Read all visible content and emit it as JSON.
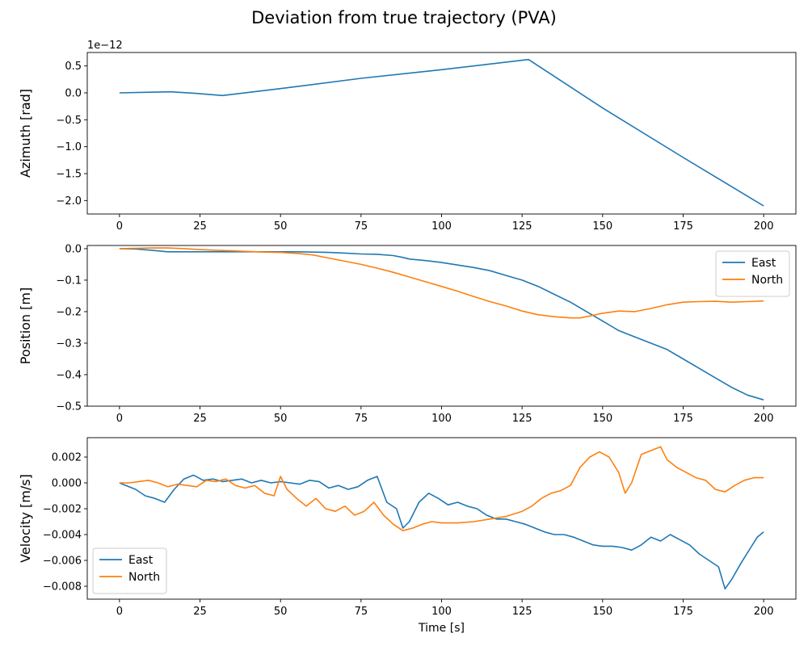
{
  "figure": {
    "title": "Deviation from true trajectory (PVA)"
  },
  "chart_data": [
    {
      "type": "line",
      "ylabel": "Azimuth [rad]",
      "xlabel": "",
      "offset_label": "1e−12",
      "xlim": [
        -10,
        210
      ],
      "ylim": [
        -2.25,
        0.75
      ],
      "xticks": [
        0,
        25,
        50,
        75,
        100,
        125,
        150,
        175,
        200
      ],
      "xtick_labels": [
        "0",
        "25",
        "50",
        "75",
        "100",
        "125",
        "150",
        "175",
        "200"
      ],
      "yticks": [
        -2.0,
        -1.5,
        -1.0,
        -0.5,
        0.0,
        0.5
      ],
      "ytick_labels": [
        "−2.0",
        "−1.5",
        "−1.0",
        "−0.5",
        "0.0",
        "0.5"
      ],
      "legend": null,
      "series": [
        {
          "color": "#1f77b4",
          "x": [
            0,
            8,
            16,
            24,
            32,
            50,
            75,
            100,
            127,
            150,
            175,
            200
          ],
          "y": [
            0.0,
            0.01,
            0.02,
            -0.01,
            -0.05,
            0.08,
            0.27,
            0.43,
            0.62,
            -0.28,
            -1.2,
            -2.1
          ]
        }
      ]
    },
    {
      "type": "line",
      "ylabel": "Position [m]",
      "xlabel": "",
      "xlim": [
        -10,
        210
      ],
      "ylim": [
        -0.5,
        0.01
      ],
      "xticks": [
        0,
        25,
        50,
        75,
        100,
        125,
        150,
        175,
        200
      ],
      "xtick_labels": [
        "0",
        "25",
        "50",
        "75",
        "100",
        "125",
        "150",
        "175",
        "200"
      ],
      "yticks": [
        -0.5,
        -0.4,
        -0.3,
        -0.2,
        -0.1,
        0.0
      ],
      "ytick_labels": [
        "−0.5",
        "−0.4",
        "−0.3",
        "−0.2",
        "−0.1",
        "0.0"
      ],
      "legend": "upper-right",
      "series": [
        {
          "name": "East",
          "color": "#1f77b4",
          "x": [
            0,
            5,
            10,
            15,
            20,
            25,
            30,
            35,
            40,
            45,
            50,
            55,
            60,
            65,
            70,
            75,
            80,
            85,
            88,
            90,
            95,
            100,
            105,
            110,
            115,
            120,
            125,
            130,
            135,
            140,
            145,
            150,
            155,
            160,
            165,
            170,
            175,
            180,
            185,
            190,
            195,
            200
          ],
          "y": [
            0.0,
            -0.001,
            -0.005,
            -0.01,
            -0.01,
            -0.01,
            -0.01,
            -0.01,
            -0.01,
            -0.01,
            -0.01,
            -0.01,
            -0.011,
            -0.012,
            -0.014,
            -0.017,
            -0.018,
            -0.022,
            -0.028,
            -0.033,
            -0.038,
            -0.044,
            -0.052,
            -0.06,
            -0.07,
            -0.085,
            -0.1,
            -0.12,
            -0.145,
            -0.17,
            -0.2,
            -0.23,
            -0.26,
            -0.28,
            -0.3,
            -0.32,
            -0.35,
            -0.38,
            -0.41,
            -0.44,
            -0.465,
            -0.48
          ]
        },
        {
          "name": "North",
          "color": "#ff7f0e",
          "x": [
            0,
            5,
            10,
            15,
            20,
            25,
            30,
            35,
            40,
            45,
            50,
            55,
            60,
            65,
            70,
            75,
            80,
            85,
            90,
            95,
            100,
            105,
            110,
            115,
            120,
            125,
            130,
            135,
            140,
            143,
            145,
            150,
            155,
            160,
            165,
            170,
            175,
            180,
            185,
            190,
            195,
            200
          ],
          "y": [
            0.0,
            0.001,
            0.002,
            0.002,
            0.0,
            -0.003,
            -0.005,
            -0.007,
            -0.009,
            -0.011,
            -0.012,
            -0.015,
            -0.02,
            -0.03,
            -0.04,
            -0.05,
            -0.062,
            -0.075,
            -0.09,
            -0.105,
            -0.12,
            -0.135,
            -0.152,
            -0.168,
            -0.182,
            -0.198,
            -0.21,
            -0.216,
            -0.22,
            -0.22,
            -0.216,
            -0.205,
            -0.198,
            -0.2,
            -0.19,
            -0.178,
            -0.17,
            -0.168,
            -0.167,
            -0.17,
            -0.168,
            -0.166
          ]
        }
      ]
    },
    {
      "type": "line",
      "ylabel": "Velocity [m/s]",
      "xlabel": "Time [s]",
      "xlim": [
        -10,
        210
      ],
      "ylim": [
        -0.009,
        0.0035
      ],
      "xticks": [
        0,
        25,
        50,
        75,
        100,
        125,
        150,
        175,
        200
      ],
      "xtick_labels": [
        "0",
        "25",
        "50",
        "75",
        "100",
        "125",
        "150",
        "175",
        "200"
      ],
      "yticks": [
        -0.008,
        -0.006,
        -0.004,
        -0.002,
        0.0,
        0.002
      ],
      "ytick_labels": [
        "−0.008",
        "−0.006",
        "−0.004",
        "−0.002",
        "0.000",
        "0.002"
      ],
      "legend": "lower-left",
      "series": [
        {
          "name": "East",
          "color": "#1f77b4",
          "x": [
            0,
            2,
            5,
            8,
            11,
            14,
            17,
            20,
            23,
            26,
            29,
            32,
            35,
            38,
            41,
            44,
            47,
            50,
            53,
            56,
            59,
            62,
            65,
            68,
            71,
            74,
            77,
            80,
            83,
            86,
            88,
            90,
            93,
            96,
            99,
            102,
            105,
            108,
            111,
            114,
            117,
            120,
            123,
            126,
            129,
            132,
            135,
            138,
            141,
            144,
            147,
            150,
            153,
            156,
            159,
            162,
            165,
            168,
            171,
            174,
            177,
            180,
            183,
            186,
            188,
            190,
            193,
            196,
            198,
            200
          ],
          "y": [
            0.0,
            -0.0002,
            -0.0005,
            -0.001,
            -0.0012,
            -0.0015,
            -0.0005,
            0.0003,
            0.0006,
            0.0002,
            0.0003,
            0.0001,
            0.0002,
            0.0003,
            0.0,
            0.0002,
            0.0,
            0.0001,
            0.0,
            -0.0001,
            0.0002,
            0.0001,
            -0.0004,
            -0.0002,
            -0.0005,
            -0.0003,
            0.0002,
            0.0005,
            -0.0015,
            -0.002,
            -0.0035,
            -0.003,
            -0.0015,
            -0.0008,
            -0.0012,
            -0.0017,
            -0.0015,
            -0.0018,
            -0.002,
            -0.0025,
            -0.0028,
            -0.0028,
            -0.003,
            -0.0032,
            -0.0035,
            -0.0038,
            -0.004,
            -0.004,
            -0.0042,
            -0.0045,
            -0.0048,
            -0.0049,
            -0.0049,
            -0.005,
            -0.0052,
            -0.0048,
            -0.0042,
            -0.0045,
            -0.004,
            -0.0044,
            -0.0048,
            -0.0055,
            -0.006,
            -0.0065,
            -0.0082,
            -0.0075,
            -0.0062,
            -0.005,
            -0.0042,
            -0.0038
          ]
        },
        {
          "name": "North",
          "color": "#ff7f0e",
          "x": [
            0,
            3,
            6,
            9,
            12,
            15,
            18,
            21,
            24,
            27,
            30,
            33,
            36,
            39,
            42,
            45,
            48,
            50,
            52,
            55,
            58,
            61,
            64,
            67,
            70,
            73,
            76,
            79,
            82,
            85,
            88,
            91,
            94,
            97,
            100,
            105,
            110,
            115,
            120,
            125,
            128,
            131,
            134,
            137,
            140,
            143,
            146,
            149,
            152,
            155,
            157,
            159,
            162,
            165,
            168,
            170,
            173,
            176,
            179,
            182,
            185,
            188,
            191,
            194,
            197,
            200
          ],
          "y": [
            0.0,
            0.0,
            0.0001,
            0.0002,
            0.0,
            -0.0003,
            -0.0001,
            -0.0002,
            -0.0003,
            0.0002,
            0.0001,
            0.0003,
            -0.0002,
            -0.0004,
            -0.0002,
            -0.0008,
            -0.001,
            0.0005,
            -0.0005,
            -0.0012,
            -0.0018,
            -0.0012,
            -0.002,
            -0.0022,
            -0.0018,
            -0.0025,
            -0.0022,
            -0.0015,
            -0.0025,
            -0.0032,
            -0.0037,
            -0.0035,
            -0.0032,
            -0.003,
            -0.0031,
            -0.0031,
            -0.003,
            -0.0028,
            -0.0026,
            -0.0022,
            -0.0018,
            -0.0012,
            -0.0008,
            -0.0006,
            -0.0002,
            0.0012,
            0.002,
            0.0024,
            0.002,
            0.0008,
            -0.0008,
            0.0,
            0.0022,
            0.0025,
            0.0028,
            0.0018,
            0.0012,
            0.0008,
            0.0004,
            0.0002,
            -0.0005,
            -0.0007,
            -0.0002,
            0.0002,
            0.0004,
            0.0004
          ]
        }
      ]
    }
  ]
}
